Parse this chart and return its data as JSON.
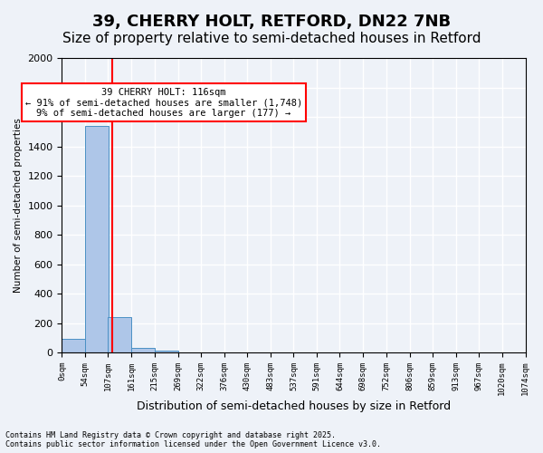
{
  "title": "39, CHERRY HOLT, RETFORD, DN22 7NB",
  "subtitle": "Size of property relative to semi-detached houses in Retford",
  "xlabel": "Distribution of semi-detached houses by size in Retford",
  "ylabel": "Number of semi-detached properties",
  "annotation_title": "39 CHERRY HOLT: 116sqm",
  "annotation_line1": "← 91% of semi-detached houses are smaller (1,748)",
  "annotation_line2": "9% of semi-detached houses are larger (177) →",
  "footer_line1": "Contains HM Land Registry data © Crown copyright and database right 2025.",
  "footer_line2": "Contains public sector information licensed under the Open Government Licence v3.0.",
  "bar_edges": [
    0,
    54,
    107,
    161,
    215,
    269,
    322,
    376,
    430,
    483,
    537,
    591,
    644,
    698,
    752,
    806,
    859,
    913,
    967,
    1020,
    1074
  ],
  "bar_heights": [
    90,
    1540,
    240,
    30,
    10,
    2,
    1,
    1,
    0,
    0,
    0,
    1,
    0,
    0,
    0,
    0,
    0,
    0,
    0,
    0
  ],
  "bar_color": "#aec6e8",
  "bar_edgecolor": "#4a90c4",
  "red_line_x": 116,
  "ylim": [
    0,
    2000
  ],
  "background_color": "#eef2f8",
  "plot_background": "#eef2f8",
  "grid_color": "#ffffff",
  "title_fontsize": 13,
  "subtitle_fontsize": 11
}
